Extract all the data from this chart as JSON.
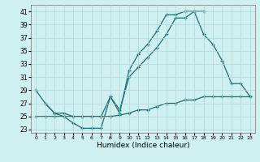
{
  "xlabel": "Humidex (Indice chaleur)",
  "bg_color": "#cff0f0",
  "grid_color": "#b0d4d4",
  "line_color": "#1a7070",
  "xmin": -0.5,
  "xmax": 23.5,
  "ymin": 22.5,
  "ymax": 42,
  "yticks": [
    23,
    25,
    27,
    29,
    31,
    33,
    35,
    37,
    39,
    41
  ],
  "xticks": [
    0,
    1,
    2,
    3,
    4,
    5,
    6,
    7,
    8,
    9,
    10,
    11,
    12,
    13,
    14,
    15,
    16,
    17,
    18,
    19,
    20,
    21,
    22,
    23
  ],
  "s1x": [
    0,
    1,
    2,
    3,
    4,
    5,
    6,
    7,
    8,
    9,
    10,
    11,
    12,
    13,
    14,
    15,
    16,
    17,
    18
  ],
  "s1y": [
    29,
    27,
    25.5,
    25,
    24,
    23.2,
    23.2,
    23.2,
    28.0,
    25.5,
    32,
    34.5,
    36,
    38,
    40.5,
    40.5,
    41,
    41,
    41
  ],
  "s2x": [
    0,
    1,
    2,
    3,
    4,
    5,
    6,
    7,
    8,
    9,
    10,
    11,
    12,
    13,
    14,
    15,
    16,
    17,
    18,
    19,
    20,
    21,
    22,
    23
  ],
  "s2y": [
    25,
    25,
    25,
    25,
    25,
    25,
    25,
    25,
    25,
    25.2,
    25.5,
    26,
    26,
    26.5,
    27,
    27,
    27.5,
    27.5,
    28,
    28,
    28,
    28,
    28,
    28
  ],
  "s3x": [
    1,
    2,
    3,
    4,
    5,
    6,
    7,
    8,
    9,
    10,
    11,
    12,
    13,
    14,
    15,
    16,
    17,
    18,
    19,
    20,
    21,
    22,
    23
  ],
  "s3y": [
    27,
    25.5,
    25.5,
    25,
    25,
    25,
    25,
    28,
    26,
    31,
    32.5,
    34,
    35.5,
    37.5,
    40,
    40,
    41,
    37.5,
    36,
    33.5,
    30,
    30,
    28
  ]
}
